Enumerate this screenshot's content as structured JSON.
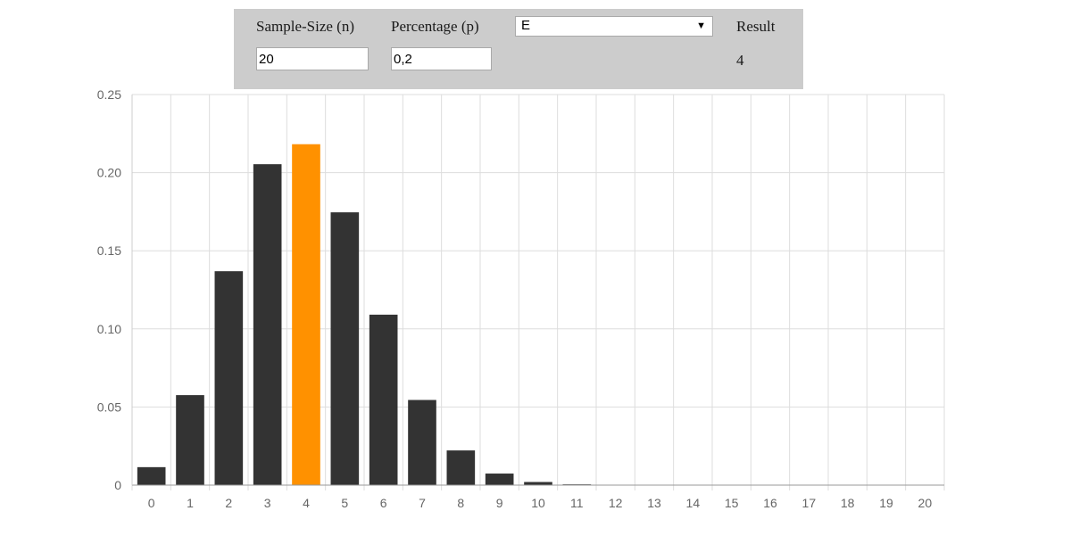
{
  "controls": {
    "sample_size_label": "Sample-Size (n)",
    "sample_size_value": "20",
    "percentage_label": "Percentage (p)",
    "percentage_value": "0,2",
    "mode_selected": "E",
    "result_label": "Result",
    "result_value": "4"
  },
  "colors": {
    "bar": "#333333",
    "highlight": "#ff9100",
    "panel": "#cccccc",
    "grid": "#dddddd"
  },
  "chart_data": {
    "type": "bar",
    "categories": [
      "0",
      "1",
      "2",
      "3",
      "4",
      "5",
      "6",
      "7",
      "8",
      "9",
      "10",
      "11",
      "12",
      "13",
      "14",
      "15",
      "16",
      "17",
      "18",
      "19",
      "20"
    ],
    "values": [
      0.0115,
      0.0576,
      0.1369,
      0.2054,
      0.2182,
      0.1746,
      0.1091,
      0.0545,
      0.0222,
      0.0074,
      0.002,
      0.0005,
      0.0001,
      2e-05,
      0,
      0,
      0,
      0,
      0,
      0,
      0
    ],
    "highlight_index": 4,
    "yticks": [
      0,
      0.05,
      0.1,
      0.15,
      0.2,
      0.25
    ],
    "ytick_labels": [
      "0",
      "0.05",
      "0.10",
      "0.15",
      "0.20",
      "0.25"
    ],
    "ylim": [
      0,
      0.25
    ],
    "grid": true,
    "title": "",
    "xlabel": "",
    "ylabel": ""
  }
}
